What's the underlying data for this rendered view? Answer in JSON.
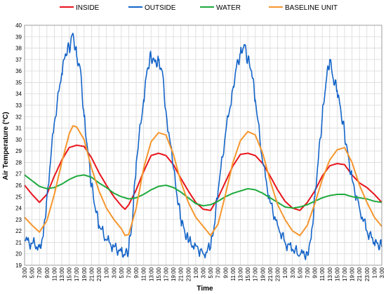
{
  "chart_data": {
    "type": "line",
    "title": "",
    "xlabel": "Time",
    "ylabel": "Air Temperature (°C)",
    "ylim": [
      19,
      40
    ],
    "y_ticks": [
      19,
      20,
      21,
      22,
      23,
      24,
      25,
      26,
      27,
      28,
      29,
      30,
      31,
      32,
      33,
      34,
      35,
      36,
      37,
      38,
      39,
      40
    ],
    "x_range": [
      3,
      99
    ],
    "x_unit": "hours",
    "x_ticks": [
      {
        "x": 3,
        "label": "3:00"
      },
      {
        "x": 5,
        "label": "5:00"
      },
      {
        "x": 7,
        "label": "7:00"
      },
      {
        "x": 9,
        "label": "9:00"
      },
      {
        "x": 11,
        "label": "11:00"
      },
      {
        "x": 13,
        "label": "13:00"
      },
      {
        "x": 15,
        "label": "15:00"
      },
      {
        "x": 17,
        "label": "17:00"
      },
      {
        "x": 19,
        "label": "19:00"
      },
      {
        "x": 21,
        "label": "21:00"
      },
      {
        "x": 23,
        "label": "23:00"
      },
      {
        "x": 25,
        "label": "1:00"
      },
      {
        "x": 27,
        "label": "3:00"
      },
      {
        "x": 29,
        "label": "5:00"
      },
      {
        "x": 31,
        "label": "7:00"
      },
      {
        "x": 33,
        "label": "9:00"
      },
      {
        "x": 35,
        "label": "11:00"
      },
      {
        "x": 37,
        "label": "13:00"
      },
      {
        "x": 39,
        "label": "15:00"
      },
      {
        "x": 41,
        "label": "17:00"
      },
      {
        "x": 43,
        "label": "19:00"
      },
      {
        "x": 45,
        "label": "21:00"
      },
      {
        "x": 47,
        "label": "23:00"
      },
      {
        "x": 49,
        "label": "1:00"
      },
      {
        "x": 51,
        "label": "3:00"
      },
      {
        "x": 53,
        "label": "5:00"
      },
      {
        "x": 55,
        "label": "7:00"
      },
      {
        "x": 57,
        "label": "9:00"
      },
      {
        "x": 59,
        "label": "11:00"
      },
      {
        "x": 61,
        "label": "13:00"
      },
      {
        "x": 63,
        "label": "15:00"
      },
      {
        "x": 65,
        "label": "17:00"
      },
      {
        "x": 67,
        "label": "19:00"
      },
      {
        "x": 69,
        "label": "21:00"
      },
      {
        "x": 71,
        "label": "23:00"
      },
      {
        "x": 73,
        "label": "1:00"
      },
      {
        "x": 75,
        "label": "3:00"
      },
      {
        "x": 77,
        "label": "5:00"
      },
      {
        "x": 79,
        "label": "7:00"
      },
      {
        "x": 81,
        "label": "9:00"
      },
      {
        "x": 83,
        "label": "11:00"
      },
      {
        "x": 85,
        "label": "13:00"
      },
      {
        "x": 87,
        "label": "15:00"
      },
      {
        "x": 89,
        "label": "17:00"
      },
      {
        "x": 91,
        "label": "19:00"
      },
      {
        "x": 93,
        "label": "21:00"
      },
      {
        "x": 95,
        "label": "23:00"
      },
      {
        "x": 97,
        "label": "1:00"
      },
      {
        "x": 99,
        "label": "3:00"
      }
    ],
    "grid": true,
    "legend_position": "top",
    "series": [
      {
        "name": "INSIDE",
        "color": "#E8141B",
        "points": [
          [
            3,
            26.0
          ],
          [
            5,
            25.2
          ],
          [
            7,
            24.5
          ],
          [
            9,
            25.2
          ],
          [
            11,
            26.8
          ],
          [
            13,
            28.2
          ],
          [
            15,
            29.3
          ],
          [
            17,
            29.5
          ],
          [
            19,
            29.4
          ],
          [
            21,
            28.4
          ],
          [
            23,
            27.1
          ],
          [
            25,
            26.0
          ],
          [
            27,
            25.0
          ],
          [
            29,
            24.2
          ],
          [
            30,
            23.9
          ],
          [
            31,
            24.3
          ],
          [
            33,
            25.6
          ],
          [
            35,
            27.2
          ],
          [
            37,
            28.6
          ],
          [
            39,
            28.8
          ],
          [
            41,
            28.6
          ],
          [
            43,
            27.8
          ],
          [
            45,
            26.6
          ],
          [
            47,
            25.5
          ],
          [
            49,
            24.5
          ],
          [
            51,
            23.9
          ],
          [
            53,
            23.8
          ],
          [
            55,
            24.9
          ],
          [
            57,
            26.3
          ],
          [
            59,
            27.7
          ],
          [
            61,
            28.7
          ],
          [
            63,
            28.8
          ],
          [
            65,
            28.6
          ],
          [
            67,
            27.9
          ],
          [
            69,
            26.8
          ],
          [
            71,
            25.6
          ],
          [
            73,
            24.6
          ],
          [
            75,
            24.0
          ],
          [
            77,
            23.8
          ],
          [
            79,
            24.5
          ],
          [
            81,
            25.5
          ],
          [
            83,
            26.8
          ],
          [
            85,
            27.7
          ],
          [
            87,
            27.9
          ],
          [
            89,
            27.8
          ],
          [
            91,
            26.9
          ],
          [
            93,
            26.2
          ],
          [
            95,
            25.8
          ],
          [
            97,
            25.2
          ],
          [
            99,
            24.5
          ]
        ]
      },
      {
        "name": "OUTSIDE",
        "color": "#1464C8",
        "points": [
          [
            3,
            21.2
          ],
          [
            5,
            20.9
          ],
          [
            7,
            20.6
          ],
          [
            8,
            21.5
          ],
          [
            9,
            25.0
          ],
          [
            11,
            31.5
          ],
          [
            13,
            35.8
          ],
          [
            14,
            37.5
          ],
          [
            15,
            38.0
          ],
          [
            16,
            39.3
          ],
          [
            17,
            37.3
          ],
          [
            18,
            36.2
          ],
          [
            19,
            32.0
          ],
          [
            20,
            29.0
          ],
          [
            21,
            26.0
          ],
          [
            22,
            24.0
          ],
          [
            23,
            22.5
          ],
          [
            25,
            21.2
          ],
          [
            27,
            20.6
          ],
          [
            29,
            20.2
          ],
          [
            30,
            19.9
          ],
          [
            31,
            20.5
          ],
          [
            32,
            23.0
          ],
          [
            33,
            28.0
          ],
          [
            35,
            33.5
          ],
          [
            36,
            36.2
          ],
          [
            37,
            37.3
          ],
          [
            38,
            36.8
          ],
          [
            39,
            36.9
          ],
          [
            40,
            36.0
          ],
          [
            41,
            32.5
          ],
          [
            43,
            27.5
          ],
          [
            44,
            25.0
          ],
          [
            45,
            23.0
          ],
          [
            46,
            22.0
          ],
          [
            47,
            21.0
          ],
          [
            49,
            20.7
          ],
          [
            51,
            20.0
          ],
          [
            53,
            20.5
          ],
          [
            54,
            22.5
          ],
          [
            55,
            25.5
          ],
          [
            57,
            30.5
          ],
          [
            59,
            34.5
          ],
          [
            60,
            36.5
          ],
          [
            61,
            37.5
          ],
          [
            62,
            38.3
          ],
          [
            63,
            37.0
          ],
          [
            64,
            36.0
          ],
          [
            65,
            33.5
          ],
          [
            67,
            28.0
          ],
          [
            69,
            24.5
          ],
          [
            71,
            22.5
          ],
          [
            73,
            21.0
          ],
          [
            75,
            20.4
          ],
          [
            77,
            19.9
          ],
          [
            79,
            20.1
          ],
          [
            80,
            21.3
          ],
          [
            81,
            25.0
          ],
          [
            82,
            28.5
          ],
          [
            83,
            32.0
          ],
          [
            84,
            35.0
          ],
          [
            85,
            37.0
          ],
          [
            86,
            35.2
          ],
          [
            87,
            34.3
          ],
          [
            88,
            32.5
          ],
          [
            89,
            30.5
          ],
          [
            90,
            28.5
          ],
          [
            91,
            26.5
          ],
          [
            93,
            24.0
          ],
          [
            95,
            22.0
          ],
          [
            97,
            21.0
          ],
          [
            98,
            20.8
          ],
          [
            99,
            20.6
          ]
        ]
      },
      {
        "name": "WATER",
        "color": "#1EAA3C",
        "points": [
          [
            3,
            26.9
          ],
          [
            5,
            26.4
          ],
          [
            7,
            25.9
          ],
          [
            9,
            25.7
          ],
          [
            11,
            25.8
          ],
          [
            13,
            26.1
          ],
          [
            15,
            26.5
          ],
          [
            17,
            26.8
          ],
          [
            19,
            26.9
          ],
          [
            21,
            26.7
          ],
          [
            23,
            26.2
          ],
          [
            25,
            25.8
          ],
          [
            27,
            25.3
          ],
          [
            29,
            25.0
          ],
          [
            31,
            24.8
          ],
          [
            33,
            24.9
          ],
          [
            35,
            25.2
          ],
          [
            37,
            25.6
          ],
          [
            39,
            25.9
          ],
          [
            41,
            26.0
          ],
          [
            43,
            25.8
          ],
          [
            45,
            25.4
          ],
          [
            47,
            24.9
          ],
          [
            49,
            24.4
          ],
          [
            51,
            24.2
          ],
          [
            53,
            24.3
          ],
          [
            55,
            24.6
          ],
          [
            57,
            25.0
          ],
          [
            59,
            25.3
          ],
          [
            61,
            25.5
          ],
          [
            63,
            25.7
          ],
          [
            65,
            25.6
          ],
          [
            67,
            25.3
          ],
          [
            69,
            24.9
          ],
          [
            71,
            24.5
          ],
          [
            73,
            24.1
          ],
          [
            75,
            24.0
          ],
          [
            77,
            24.1
          ],
          [
            79,
            24.3
          ],
          [
            81,
            24.6
          ],
          [
            83,
            24.9
          ],
          [
            85,
            25.1
          ],
          [
            87,
            25.2
          ],
          [
            89,
            25.2
          ],
          [
            91,
            25.0
          ],
          [
            93,
            24.9
          ],
          [
            95,
            24.8
          ],
          [
            97,
            24.6
          ],
          [
            99,
            24.5
          ]
        ]
      },
      {
        "name": "BASELINE UNIT",
        "color": "#F5962D",
        "points": [
          [
            3,
            23.2
          ],
          [
            5,
            22.5
          ],
          [
            7,
            21.9
          ],
          [
            9,
            22.9
          ],
          [
            11,
            25.2
          ],
          [
            13,
            28.0
          ],
          [
            15,
            30.5
          ],
          [
            16,
            31.2
          ],
          [
            17,
            31.1
          ],
          [
            19,
            30.0
          ],
          [
            21,
            27.5
          ],
          [
            23,
            25.5
          ],
          [
            25,
            24.0
          ],
          [
            27,
            23.0
          ],
          [
            29,
            22.2
          ],
          [
            30,
            21.6
          ],
          [
            31,
            21.7
          ],
          [
            33,
            24.0
          ],
          [
            35,
            27.5
          ],
          [
            37,
            29.8
          ],
          [
            39,
            30.6
          ],
          [
            41,
            30.4
          ],
          [
            43,
            28.7
          ],
          [
            45,
            26.3
          ],
          [
            47,
            24.5
          ],
          [
            49,
            23.2
          ],
          [
            51,
            22.4
          ],
          [
            53,
            21.6
          ],
          [
            55,
            22.6
          ],
          [
            57,
            25.2
          ],
          [
            59,
            28.0
          ],
          [
            61,
            29.9
          ],
          [
            63,
            30.7
          ],
          [
            65,
            30.4
          ],
          [
            67,
            28.8
          ],
          [
            69,
            26.4
          ],
          [
            71,
            24.3
          ],
          [
            73,
            23.0
          ],
          [
            75,
            22.0
          ],
          [
            77,
            21.6
          ],
          [
            79,
            22.5
          ],
          [
            81,
            24.4
          ],
          [
            83,
            26.5
          ],
          [
            85,
            28.2
          ],
          [
            87,
            29.1
          ],
          [
            89,
            29.3
          ],
          [
            91,
            28.0
          ],
          [
            93,
            26.0
          ],
          [
            95,
            24.5
          ],
          [
            97,
            23.2
          ],
          [
            99,
            22.4
          ]
        ]
      }
    ]
  }
}
